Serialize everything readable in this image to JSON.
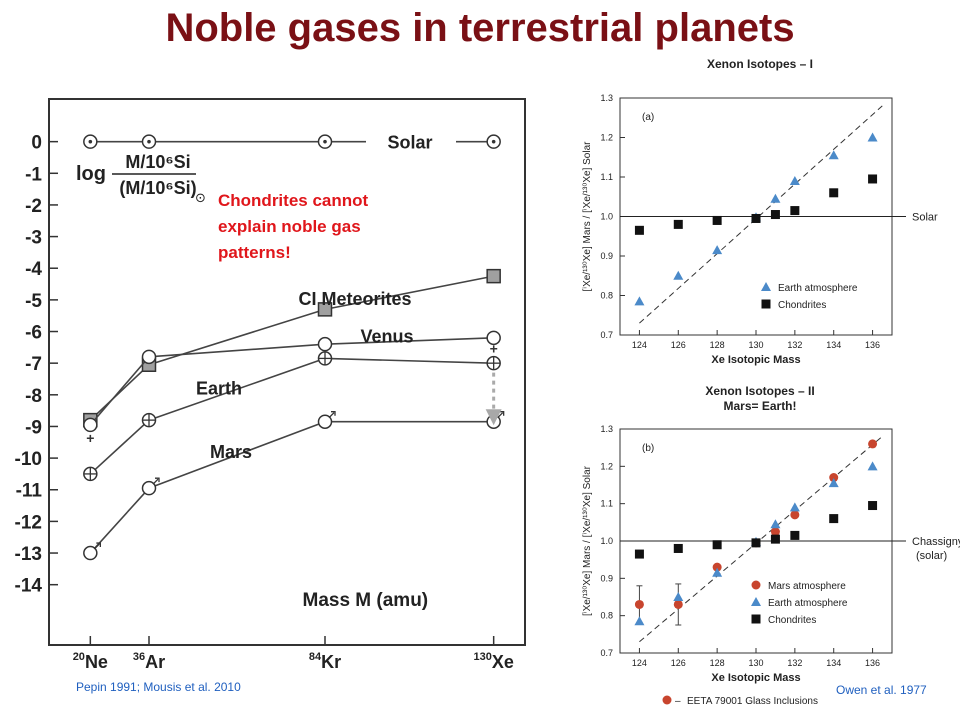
{
  "slide": {
    "title": "Noble gases in terrestrial planets",
    "note": "Chondrites cannot\nexplain noble gas\npatterns!",
    "citation_left": "Pepin 1991; Mousis et al. 2010",
    "citation_right": "Owen et al. 1977"
  },
  "colors": {
    "title": "#7a1015",
    "note": "#e0161b",
    "citation": "#1f5fbf",
    "earth_triangle": "#4b8ac9",
    "mars_circle": "#c8452e",
    "chondrite_square": "#111111",
    "ci_square": "#a0a0a0"
  },
  "chart_data": [
    {
      "type": "line",
      "xlabel": "Mass M (amu)",
      "ylabel_num": "M/10⁶Si",
      "ylabel_den": "(M/10⁶Si)",
      "ylabel_log": "log",
      "ylabel_sub": "⊙",
      "ylim": [
        -14.8,
        1
      ],
      "xlim": [
        15,
        135
      ],
      "yticks": [
        0,
        -1,
        -2,
        -3,
        -4,
        -5,
        -6,
        -7,
        -8,
        -9,
        -10,
        -11,
        -12,
        -13,
        -14
      ],
      "categories": [
        20,
        36,
        84,
        130
      ],
      "category_labels": [
        {
          "sup": "20",
          "base": "Ne"
        },
        {
          "sup": "36",
          "base": "Ar"
        },
        {
          "sup": "84",
          "base": "Kr"
        },
        {
          "sup": "130",
          "base": "Xe"
        }
      ],
      "series": [
        {
          "name": "Solar",
          "marker": "circle-dot",
          "values": [
            0,
            0,
            0,
            0
          ],
          "label_at": 84
        },
        {
          "name": "CI Meteorites",
          "marker": "square",
          "values": [
            -8.8,
            -7.05,
            -5.3,
            -4.25
          ],
          "label_at": 84
        },
        {
          "name": "Venus",
          "marker": "circle",
          "values": [
            -8.95,
            -6.8,
            -6.4,
            -6.2
          ],
          "label_at": 84
        },
        {
          "name": "Earth",
          "marker": "circle-plus",
          "values": [
            -10.5,
            -8.8,
            -6.85,
            -7.0
          ],
          "label_at": 36
        },
        {
          "name": "Mars",
          "marker": "circle-mars",
          "values": [
            -13.0,
            -10.95,
            -8.85,
            -8.85
          ],
          "label_at": 36
        }
      ],
      "arrow": {
        "x": 130,
        "from": -7.3,
        "to": -8.9
      }
    },
    {
      "type": "scatter",
      "title": "Xenon Isotopes – I",
      "panel_label": "(a)",
      "xlabel": "Xe Isotopic Mass",
      "ylabel": "[ⁱXe/¹³⁰Xe] Mars / [ⁱXe/¹³⁰Xe] Solar",
      "xlim": [
        123,
        137
      ],
      "ylim": [
        0.7,
        1.3
      ],
      "xticks": [
        124,
        126,
        128,
        130,
        132,
        134,
        136
      ],
      "yticks": [
        0.7,
        0.8,
        0.9,
        1.0,
        1.1,
        1.2,
        1.3
      ],
      "reference_line": {
        "y": 1.0,
        "label": "Solar"
      },
      "fit_line": [
        [
          124,
          0.73
        ],
        [
          136.5,
          1.28
        ]
      ],
      "series": [
        {
          "name": "Earth atmosphere",
          "marker": "triangle",
          "x": [
            124,
            126,
            128,
            130,
            131,
            132,
            134,
            136
          ],
          "y": [
            0.785,
            0.85,
            0.915,
            0.998,
            1.045,
            1.09,
            1.155,
            1.2
          ]
        },
        {
          "name": "Chondrites",
          "marker": "square",
          "x": [
            124,
            126,
            128,
            130,
            131,
            132,
            134,
            136
          ],
          "y": [
            0.965,
            0.98,
            0.99,
            0.995,
            1.005,
            1.015,
            1.06,
            1.095
          ]
        }
      ]
    },
    {
      "type": "scatter",
      "title": "Xenon Isotopes – II",
      "subtitle": "Mars= Earth!",
      "panel_label": "(b)",
      "xlabel": "Xe Isotopic Mass",
      "ylabel": "[ⁱXe/¹³⁰Xe] Mars / [ⁱXe/¹³⁰Xe] Solar",
      "xlim": [
        123,
        137
      ],
      "ylim": [
        0.7,
        1.3
      ],
      "xticks": [
        124,
        126,
        128,
        130,
        132,
        134,
        136
      ],
      "yticks": [
        0.7,
        0.8,
        0.9,
        1.0,
        1.1,
        1.2,
        1.3
      ],
      "reference_line": {
        "y": 1.0,
        "label": "Chassigny",
        "label2": "(solar)"
      },
      "fit_line": [
        [
          124,
          0.73
        ],
        [
          136.5,
          1.28
        ]
      ],
      "footer_legend": "EETA 79001 Glass Inclusions",
      "series": [
        {
          "name": "Mars atmosphere",
          "marker": "circle",
          "x": [
            124,
            126,
            128,
            130,
            131,
            132,
            134,
            136
          ],
          "y": [
            0.83,
            0.83,
            0.93,
            0.995,
            1.025,
            1.07,
            1.17,
            1.26
          ],
          "err": [
            0.05,
            0.055,
            0,
            0,
            0,
            0,
            0,
            0
          ]
        },
        {
          "name": "Earth atmosphere",
          "marker": "triangle",
          "x": [
            124,
            126,
            128,
            130,
            131,
            132,
            134,
            136
          ],
          "y": [
            0.785,
            0.85,
            0.915,
            0.998,
            1.045,
            1.09,
            1.155,
            1.2
          ]
        },
        {
          "name": "Chondrites",
          "marker": "square",
          "x": [
            124,
            126,
            128,
            130,
            131,
            132,
            134,
            136
          ],
          "y": [
            0.965,
            0.98,
            0.99,
            0.995,
            1.005,
            1.015,
            1.06,
            1.095
          ]
        }
      ]
    }
  ]
}
